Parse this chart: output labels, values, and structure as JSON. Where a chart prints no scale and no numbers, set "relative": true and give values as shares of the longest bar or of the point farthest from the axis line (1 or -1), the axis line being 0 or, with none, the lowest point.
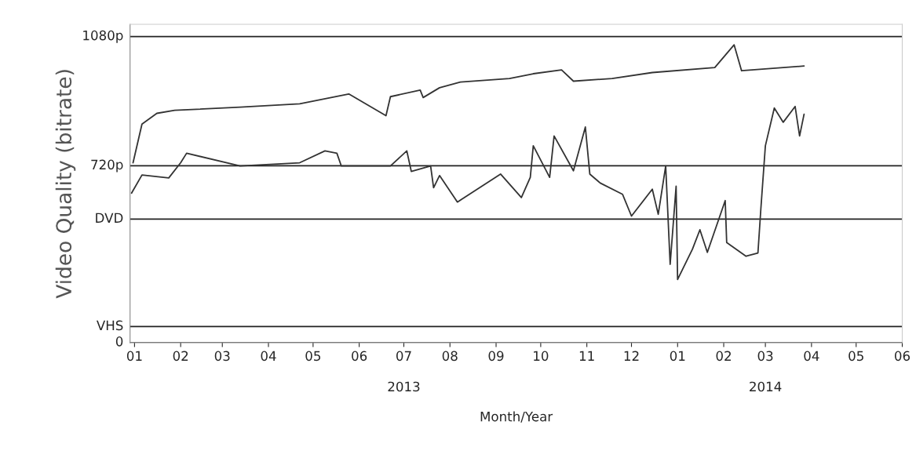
{
  "chart_data": {
    "type": "line",
    "xlabel": "Month/Year",
    "ylabel": "Video Quality (bitrate)",
    "relative": true,
    "series": [
      {
        "color": "#333333",
        "x": [
          "2012-12-31",
          "2013-01-06",
          "2013-01-16",
          "2013-01-28",
          "2013-03-13",
          "2013-04-22",
          "2013-05-25",
          "2013-06-19",
          "2013-06-22",
          "2013-07-12",
          "2013-07-14",
          "2013-07-25",
          "2013-08-08",
          "2013-09-10",
          "2013-09-26",
          "2013-10-15",
          "2013-10-23",
          "2013-11-18",
          "2013-12-15",
          "2014-01-26",
          "2014-02-08",
          "2014-02-13",
          "2014-03-27"
        ],
        "values": [
          0.604,
          0.734,
          0.77,
          0.78,
          0.791,
          0.802,
          0.835,
          0.762,
          0.826,
          0.848,
          0.823,
          0.856,
          0.875,
          0.887,
          0.903,
          0.916,
          0.878,
          0.887,
          0.907,
          0.924,
          1,
          0.913,
          0.929
        ]
      },
      {
        "color": "#333333",
        "x": [
          "2012-12-30",
          "2013-01-06",
          "2013-01-24",
          "2013-02-01",
          "2013-02-05",
          "2013-03-13",
          "2013-04-22",
          "2013-05-09",
          "2013-05-17",
          "2013-05-20",
          "2013-06-22",
          "2013-07-03",
          "2013-07-06",
          "2013-07-19",
          "2013-07-21",
          "2013-07-25",
          "2013-08-06",
          "2013-09-04",
          "2013-09-18",
          "2013-09-24",
          "2013-09-26",
          "2013-10-07",
          "2013-10-10",
          "2013-10-23",
          "2013-10-31",
          "2013-11-03",
          "2013-11-10",
          "2013-11-25",
          "2013-12-01",
          "2013-12-15",
          "2013-12-19",
          "2013-12-24",
          "2013-12-27",
          "2013-12-31",
          "2014-01-01",
          "2014-01-11",
          "2014-01-16",
          "2014-01-21",
          "2014-02-02",
          "2014-02-03",
          "2014-02-16",
          "2014-02-24",
          "2014-02-26",
          "2014-03-01",
          "2014-03-07",
          "2014-03-13",
          "2014-03-21",
          "2014-03-24",
          "2014-03-27"
        ],
        "values": [
          0.502,
          0.563,
          0.553,
          0.604,
          0.636,
          0.593,
          0.604,
          0.644,
          0.636,
          0.593,
          0.593,
          0.644,
          0.575,
          0.593,
          0.52,
          0.561,
          0.472,
          0.566,
          0.487,
          0.555,
          0.661,
          0.555,
          0.694,
          0.577,
          0.724,
          0.566,
          0.536,
          0.498,
          0.425,
          0.515,
          0.431,
          0.593,
          0.263,
          0.525,
          0.212,
          0.314,
          0.379,
          0.303,
          0.477,
          0.336,
          0.29,
          0.301,
          0.452,
          0.661,
          0.788,
          0.74,
          0.793,
          0.694,
          0.767
        ]
      }
    ],
    "ref_lines": [
      {
        "axis": "y",
        "value": 0,
        "label": "0"
      },
      {
        "axis": "y",
        "value": 0.054,
        "label": "VHS"
      },
      {
        "axis": "y",
        "value": 0.415,
        "label": "DVD"
      },
      {
        "axis": "y",
        "value": 0.594,
        "label": "720p"
      },
      {
        "axis": "y",
        "value": 1.028,
        "label": "1080p"
      }
    ],
    "xlim": [
      "2012-12-29",
      "2014-06-01"
    ],
    "xticks": [
      {
        "value": "2013-01",
        "label": "01"
      },
      {
        "value": "2013-02",
        "label": "02"
      },
      {
        "value": "2013-03",
        "label": "03"
      },
      {
        "value": "2013-04",
        "label": "04"
      },
      {
        "value": "2013-05",
        "label": "05"
      },
      {
        "value": "2013-06",
        "label": "06"
      },
      {
        "value": "2013-07",
        "label": "07"
      },
      {
        "value": "2013-08",
        "label": "08"
      },
      {
        "value": "2013-09",
        "label": "09"
      },
      {
        "value": "2013-10",
        "label": "10"
      },
      {
        "value": "2013-11",
        "label": "11"
      },
      {
        "value": "2013-12",
        "label": "12"
      },
      {
        "value": "2014-01",
        "label": "01"
      },
      {
        "value": "2014-02",
        "label": "02"
      },
      {
        "value": "2014-03",
        "label": "03"
      },
      {
        "value": "2014-04",
        "label": "04"
      },
      {
        "value": "2014-05",
        "label": "05"
      },
      {
        "value": "2014-06",
        "label": "06"
      }
    ],
    "x2lim": [
      "2012-12-29",
      "2014-06-01"
    ],
    "x2ticks": [
      {
        "value": "2013-07",
        "label": "2013"
      },
      {
        "value": "2014-03",
        "label": "2014"
      }
    ],
    "legend": false,
    "marker": "none",
    "line_style": "solid"
  }
}
